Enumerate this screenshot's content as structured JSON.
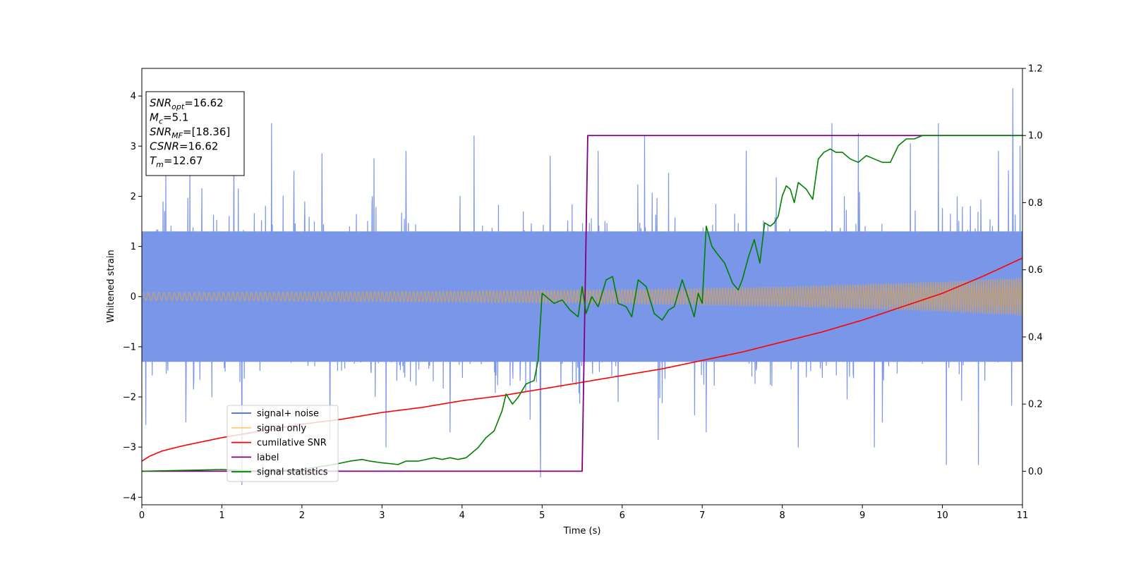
{
  "chart_data": {
    "type": "line",
    "xlabel": "Time (s)",
    "ylabel": "Whitened strain",
    "xlim": [
      0,
      11
    ],
    "ylim_left": [
      -4.15,
      4.55
    ],
    "ylim_right": [
      -0.1,
      1.2
    ],
    "xticks": [
      "0",
      "1",
      "2",
      "3",
      "4",
      "5",
      "6",
      "7",
      "8",
      "9",
      "10",
      "11"
    ],
    "yticks_left": [
      "−4",
      "−3",
      "−2",
      "−1",
      "0",
      "1",
      "2",
      "3",
      "4"
    ],
    "yticks_right": [
      "0.0",
      "0.2",
      "0.4",
      "0.6",
      "0.8",
      "1.0",
      "1.2"
    ],
    "grid": false,
    "legend_position": "lower-left",
    "info_box": [
      {
        "base": "SNR",
        "sub": "opt",
        "rest": "=16.62"
      },
      {
        "base": "M",
        "sub": "c",
        "rest": "=5.1"
      },
      {
        "base": "SNR",
        "sub": "MF",
        "rest": "=[18.36]"
      },
      {
        "base": "CSNR",
        "sub": "",
        "rest": "=16.62"
      },
      {
        "base": "T",
        "sub": "m",
        "rest": "=12.67"
      }
    ],
    "series": [
      {
        "name": "signal+ noise",
        "color": "#4169e1",
        "axis": "left",
        "style": "noise band",
        "envelope_typical": [
          -1.3,
          1.3
        ],
        "spikes": [
          {
            "x": 0.05,
            "y": -2.55
          },
          {
            "x": 0.3,
            "y": 2.7
          },
          {
            "x": 0.55,
            "y": -2.5
          },
          {
            "x": 0.6,
            "y": 2.8
          },
          {
            "x": 1.15,
            "y": 2.9
          },
          {
            "x": 1.25,
            "y": -3.75
          },
          {
            "x": 1.62,
            "y": 3.45
          },
          {
            "x": 1.9,
            "y": 2.5
          },
          {
            "x": 2.25,
            "y": 2.85
          },
          {
            "x": 2.35,
            "y": -2.85
          },
          {
            "x": 2.9,
            "y": 2.75
          },
          {
            "x": 3.05,
            "y": -3.0
          },
          {
            "x": 3.3,
            "y": 2.9
          },
          {
            "x": 3.85,
            "y": -2.7
          },
          {
            "x": 4.15,
            "y": 3.2
          },
          {
            "x": 4.85,
            "y": -2.45
          },
          {
            "x": 4.98,
            "y": -3.6
          },
          {
            "x": 5.1,
            "y": 2.8
          },
          {
            "x": 5.7,
            "y": 2.9
          },
          {
            "x": 6.28,
            "y": 3.2
          },
          {
            "x": 6.45,
            "y": -2.85
          },
          {
            "x": 7.05,
            "y": -2.7
          },
          {
            "x": 7.55,
            "y": 2.9
          },
          {
            "x": 8.2,
            "y": -3.0
          },
          {
            "x": 8.62,
            "y": 3.45
          },
          {
            "x": 8.95,
            "y": 3.25
          },
          {
            "x": 9.15,
            "y": -3.0
          },
          {
            "x": 9.25,
            "y": -2.5
          },
          {
            "x": 9.6,
            "y": 3.05
          },
          {
            "x": 9.95,
            "y": 3.45
          },
          {
            "x": 10.05,
            "y": -3.35
          },
          {
            "x": 10.45,
            "y": -3.35
          },
          {
            "x": 10.7,
            "y": 2.9
          },
          {
            "x": 10.88,
            "y": 4.15
          },
          {
            "x": 10.97,
            "y": 3.0
          }
        ]
      },
      {
        "name": "signal only",
        "color": "#ffa500",
        "axis": "left",
        "style": "chirp",
        "amplitude_x": [
          0,
          2,
          4,
          6,
          8,
          10,
          11
        ],
        "amplitude_y": [
          0.08,
          0.09,
          0.11,
          0.14,
          0.2,
          0.3,
          0.38
        ]
      },
      {
        "name": "cumilative SNR",
        "color": "#ff0000",
        "axis": "right",
        "x": [
          0,
          0.1,
          0.25,
          0.5,
          1,
          1.5,
          2,
          2.5,
          3,
          3.5,
          4,
          4.5,
          5,
          5.5,
          6,
          6.5,
          7,
          7.5,
          8,
          8.5,
          9,
          9.5,
          10,
          10.5,
          11
        ],
        "y": [
          0.03,
          0.045,
          0.06,
          0.075,
          0.1,
          0.12,
          0.14,
          0.155,
          0.175,
          0.19,
          0.21,
          0.225,
          0.245,
          0.265,
          0.285,
          0.305,
          0.33,
          0.355,
          0.385,
          0.415,
          0.45,
          0.49,
          0.53,
          0.58,
          0.635
        ]
      },
      {
        "name": "label",
        "color": "#800080",
        "axis": "right",
        "x": [
          0,
          5.5,
          5.57,
          11
        ],
        "y": [
          0,
          0,
          1,
          1
        ]
      },
      {
        "name": "signal statistics",
        "color": "#008000",
        "axis": "right",
        "x": [
          0,
          1.0,
          1.5,
          2.0,
          2.4,
          2.6,
          2.75,
          2.85,
          3.0,
          3.2,
          3.3,
          3.45,
          3.65,
          3.75,
          3.85,
          3.95,
          4.05,
          4.2,
          4.3,
          4.4,
          4.5,
          4.55,
          4.63,
          4.7,
          4.8,
          4.9,
          4.95,
          5.0,
          5.05,
          5.15,
          5.25,
          5.35,
          5.45,
          5.5,
          5.55,
          5.62,
          5.7,
          5.8,
          5.88,
          5.95,
          6.05,
          6.12,
          6.2,
          6.3,
          6.4,
          6.5,
          6.58,
          6.65,
          6.75,
          6.82,
          6.9,
          6.95,
          7.0,
          7.05,
          7.12,
          7.18,
          7.28,
          7.38,
          7.45,
          7.5,
          7.58,
          7.65,
          7.72,
          7.78,
          7.85,
          7.9,
          7.95,
          8.0,
          8.05,
          8.1,
          8.15,
          8.2,
          8.25,
          8.3,
          8.38,
          8.45,
          8.52,
          8.6,
          8.67,
          8.75,
          8.85,
          8.95,
          9.05,
          9.15,
          9.25,
          9.35,
          9.45,
          9.55,
          9.6,
          9.65,
          9.75,
          9.85,
          10.0,
          10.5,
          11.0
        ],
        "y": [
          0.0,
          0.005,
          0.0,
          0.005,
          0.02,
          0.03,
          0.035,
          0.03,
          0.025,
          0.02,
          0.03,
          0.03,
          0.04,
          0.035,
          0.04,
          0.035,
          0.04,
          0.07,
          0.1,
          0.12,
          0.18,
          0.23,
          0.2,
          0.22,
          0.26,
          0.27,
          0.33,
          0.53,
          0.52,
          0.5,
          0.51,
          0.48,
          0.46,
          0.55,
          0.47,
          0.52,
          0.49,
          0.57,
          0.58,
          0.5,
          0.49,
          0.46,
          0.57,
          0.55,
          0.47,
          0.45,
          0.48,
          0.49,
          0.57,
          0.52,
          0.46,
          0.53,
          0.5,
          0.73,
          0.67,
          0.65,
          0.62,
          0.56,
          0.54,
          0.57,
          0.64,
          0.69,
          0.62,
          0.74,
          0.73,
          0.74,
          0.76,
          0.82,
          0.85,
          0.84,
          0.8,
          0.86,
          0.85,
          0.84,
          0.81,
          0.93,
          0.95,
          0.96,
          0.95,
          0.95,
          0.93,
          0.92,
          0.94,
          0.93,
          0.92,
          0.92,
          0.97,
          0.99,
          0.99,
          0.99,
          1.0,
          1.0,
          1.0,
          1.0,
          1.0
        ]
      }
    ]
  }
}
